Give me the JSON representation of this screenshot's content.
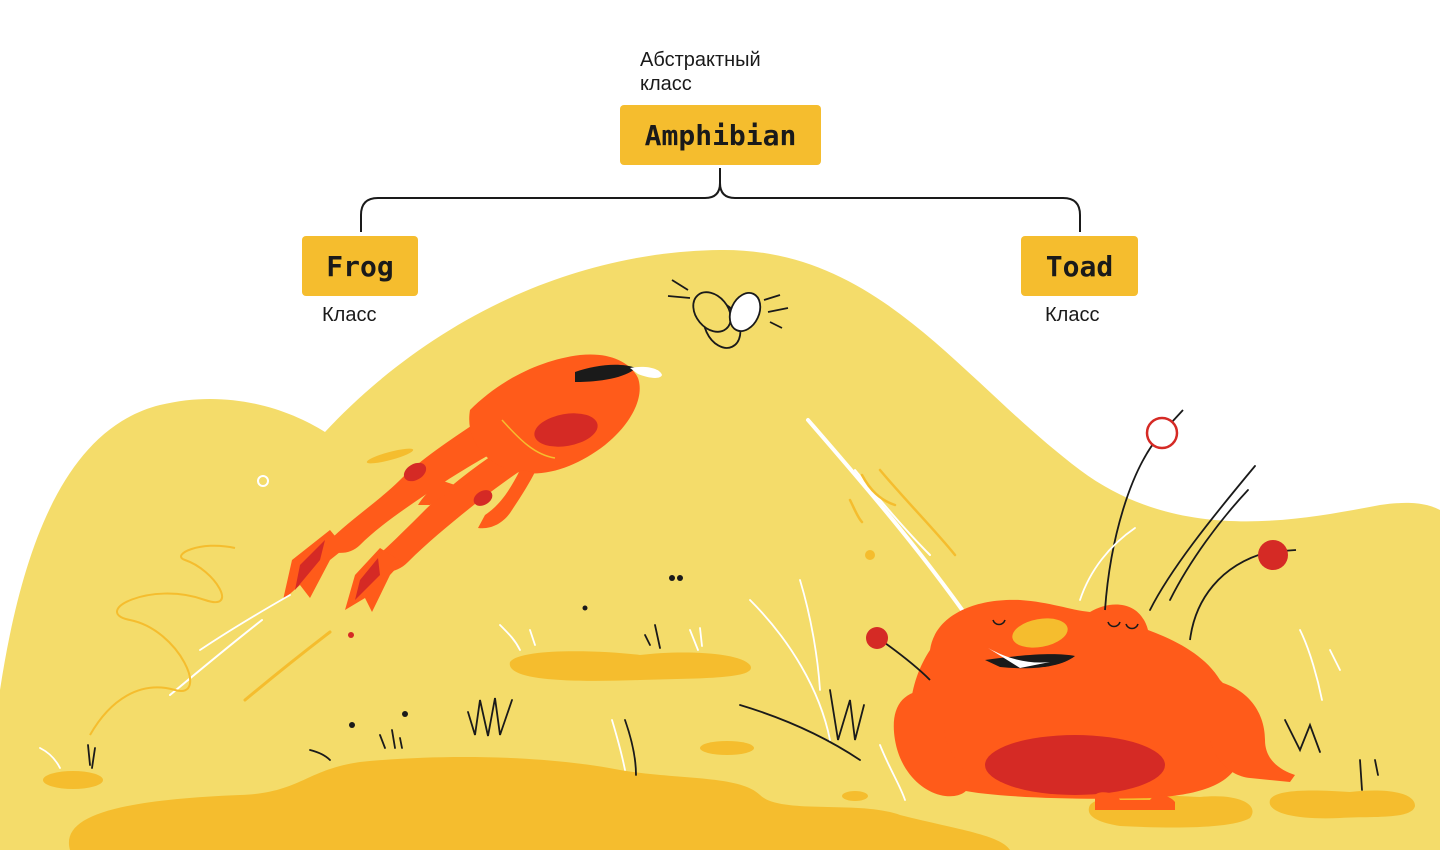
{
  "diagram": {
    "root": {
      "name": "Amphibian",
      "caption_line1": "Абстрактный",
      "caption_line2": "класс"
    },
    "children": [
      {
        "name": "Frog",
        "caption": "Класс"
      },
      {
        "name": "Toad",
        "caption": "Класс"
      }
    ]
  },
  "colors": {
    "hill": "#F4DC6A",
    "puddle": "#F5BD2E",
    "box": "#F5BD2E",
    "frog_orange": "#FF5B1A",
    "frog_red": "#D52A25",
    "line": "#1a1a1a"
  },
  "illustration": {
    "elements": [
      "hill",
      "puddles",
      "jumping-frog",
      "fly",
      "sitting-toad",
      "grass",
      "flowers"
    ]
  }
}
